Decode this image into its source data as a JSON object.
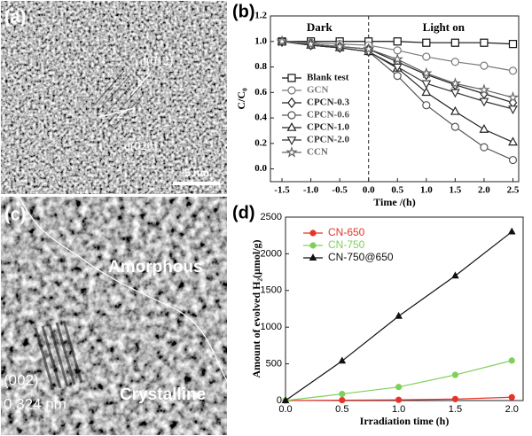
{
  "panel_a": {
    "label": "(a)",
    "annotations": [
      "d(012)",
      "1",
      "2",
      "d(020)"
    ],
    "scale_bar": "5 nm"
  },
  "panel_c": {
    "label": "(c)",
    "regions": [
      "Amorphous",
      "Crystalline"
    ],
    "plane": "(002)",
    "spacing": "0.324 nm"
  },
  "chart_data": [
    {
      "type": "line",
      "panel_label": "(b)",
      "xlabel": "Time /(h)",
      "ylabel": "C/C₀",
      "annotations": [
        "Dark",
        "Light on"
      ],
      "vline": 0,
      "x": [
        -1.5,
        -1.0,
        -0.5,
        0.0,
        0.5,
        1.0,
        1.5,
        2.0,
        2.5
      ],
      "xlim": [
        -1.7,
        2.6
      ],
      "ylim": [
        -0.1,
        1.2
      ],
      "xticks": [
        -1.5,
        {
          "value": -1.0,
          "label": "-1.0"
        },
        -0.5,
        {
          "value": 0.0,
          "label": "0.0"
        },
        0.5,
        {
          "value": 1.0,
          "label": "1.0"
        },
        1.5,
        {
          "value": 2.0,
          "label": "2.0"
        },
        2.5
      ],
      "yticks": [
        {
          "value": 0.0,
          "label": "0.0"
        },
        0.2,
        0.4,
        0.6,
        0.8,
        {
          "value": 1.0,
          "label": "1.0"
        },
        1.2
      ],
      "open_markers": true,
      "legend": "lower left",
      "series": [
        {
          "name": "Blank test",
          "color": "#111111",
          "marker": "square",
          "values": [
            1.0,
            1.0,
            1.0,
            1.0,
            1.0,
            0.99,
            0.99,
            0.99,
            0.98
          ]
        },
        {
          "name": "GCN",
          "color": "#7a7a7a",
          "marker": "circle",
          "values": [
            1.0,
            0.99,
            0.98,
            0.97,
            0.93,
            0.88,
            0.84,
            0.81,
            0.77
          ]
        },
        {
          "name": "CPCN-0.3",
          "color": "#222222",
          "marker": "diamond",
          "values": [
            1.0,
            0.98,
            0.96,
            0.94,
            0.84,
            0.74,
            0.66,
            0.59,
            0.52
          ]
        },
        {
          "name": "CPCN-0.6",
          "color": "#555555",
          "marker": "circle",
          "values": [
            1.0,
            0.97,
            0.95,
            0.92,
            0.73,
            0.5,
            0.33,
            0.17,
            0.07
          ]
        },
        {
          "name": "CPCN-1.0",
          "color": "#222222",
          "marker": "triangle",
          "values": [
            1.0,
            0.97,
            0.95,
            0.92,
            0.79,
            0.6,
            0.45,
            0.31,
            0.21
          ]
        },
        {
          "name": "CPCN-2.0",
          "color": "#333333",
          "marker": "triangle-down",
          "values": [
            1.0,
            0.97,
            0.95,
            0.92,
            0.8,
            0.67,
            0.6,
            0.53,
            0.47
          ]
        },
        {
          "name": "CCN",
          "color": "#666666",
          "marker": "star",
          "values": [
            1.0,
            0.98,
            0.96,
            0.94,
            0.86,
            0.75,
            0.67,
            0.62,
            0.56
          ]
        }
      ]
    },
    {
      "type": "line",
      "panel_label": "(d)",
      "xlabel": "Irradiation time (h)",
      "ylabel": "Amount of evolved H₂(μmol/g)",
      "x": [
        0,
        0.5,
        1.0,
        1.5,
        2.0
      ],
      "xlim": [
        0,
        2.1
      ],
      "ylim": [
        0,
        2500
      ],
      "xticks": [
        {
          "value": 0.0,
          "label": "0.0"
        },
        0.5,
        {
          "value": 1.0,
          "label": "1.0"
        },
        1.5,
        {
          "value": 2.0,
          "label": "2.0"
        }
      ],
      "yticks": [
        0,
        500,
        1000,
        1500,
        2000,
        2500
      ],
      "open_markers": false,
      "legend": "upper left",
      "series": [
        {
          "name": "CN-650",
          "color": "#e8332a",
          "marker": "circle",
          "values": [
            0,
            5,
            10,
            20,
            45
          ]
        },
        {
          "name": "CN-750",
          "color": "#7fd05a",
          "marker": "circle",
          "values": [
            0,
            90,
            185,
            350,
            545
          ]
        },
        {
          "name": "CN-750@650",
          "color": "#111111",
          "marker": "triangle",
          "values": [
            0,
            540,
            1150,
            1700,
            2300
          ]
        }
      ]
    }
  ]
}
